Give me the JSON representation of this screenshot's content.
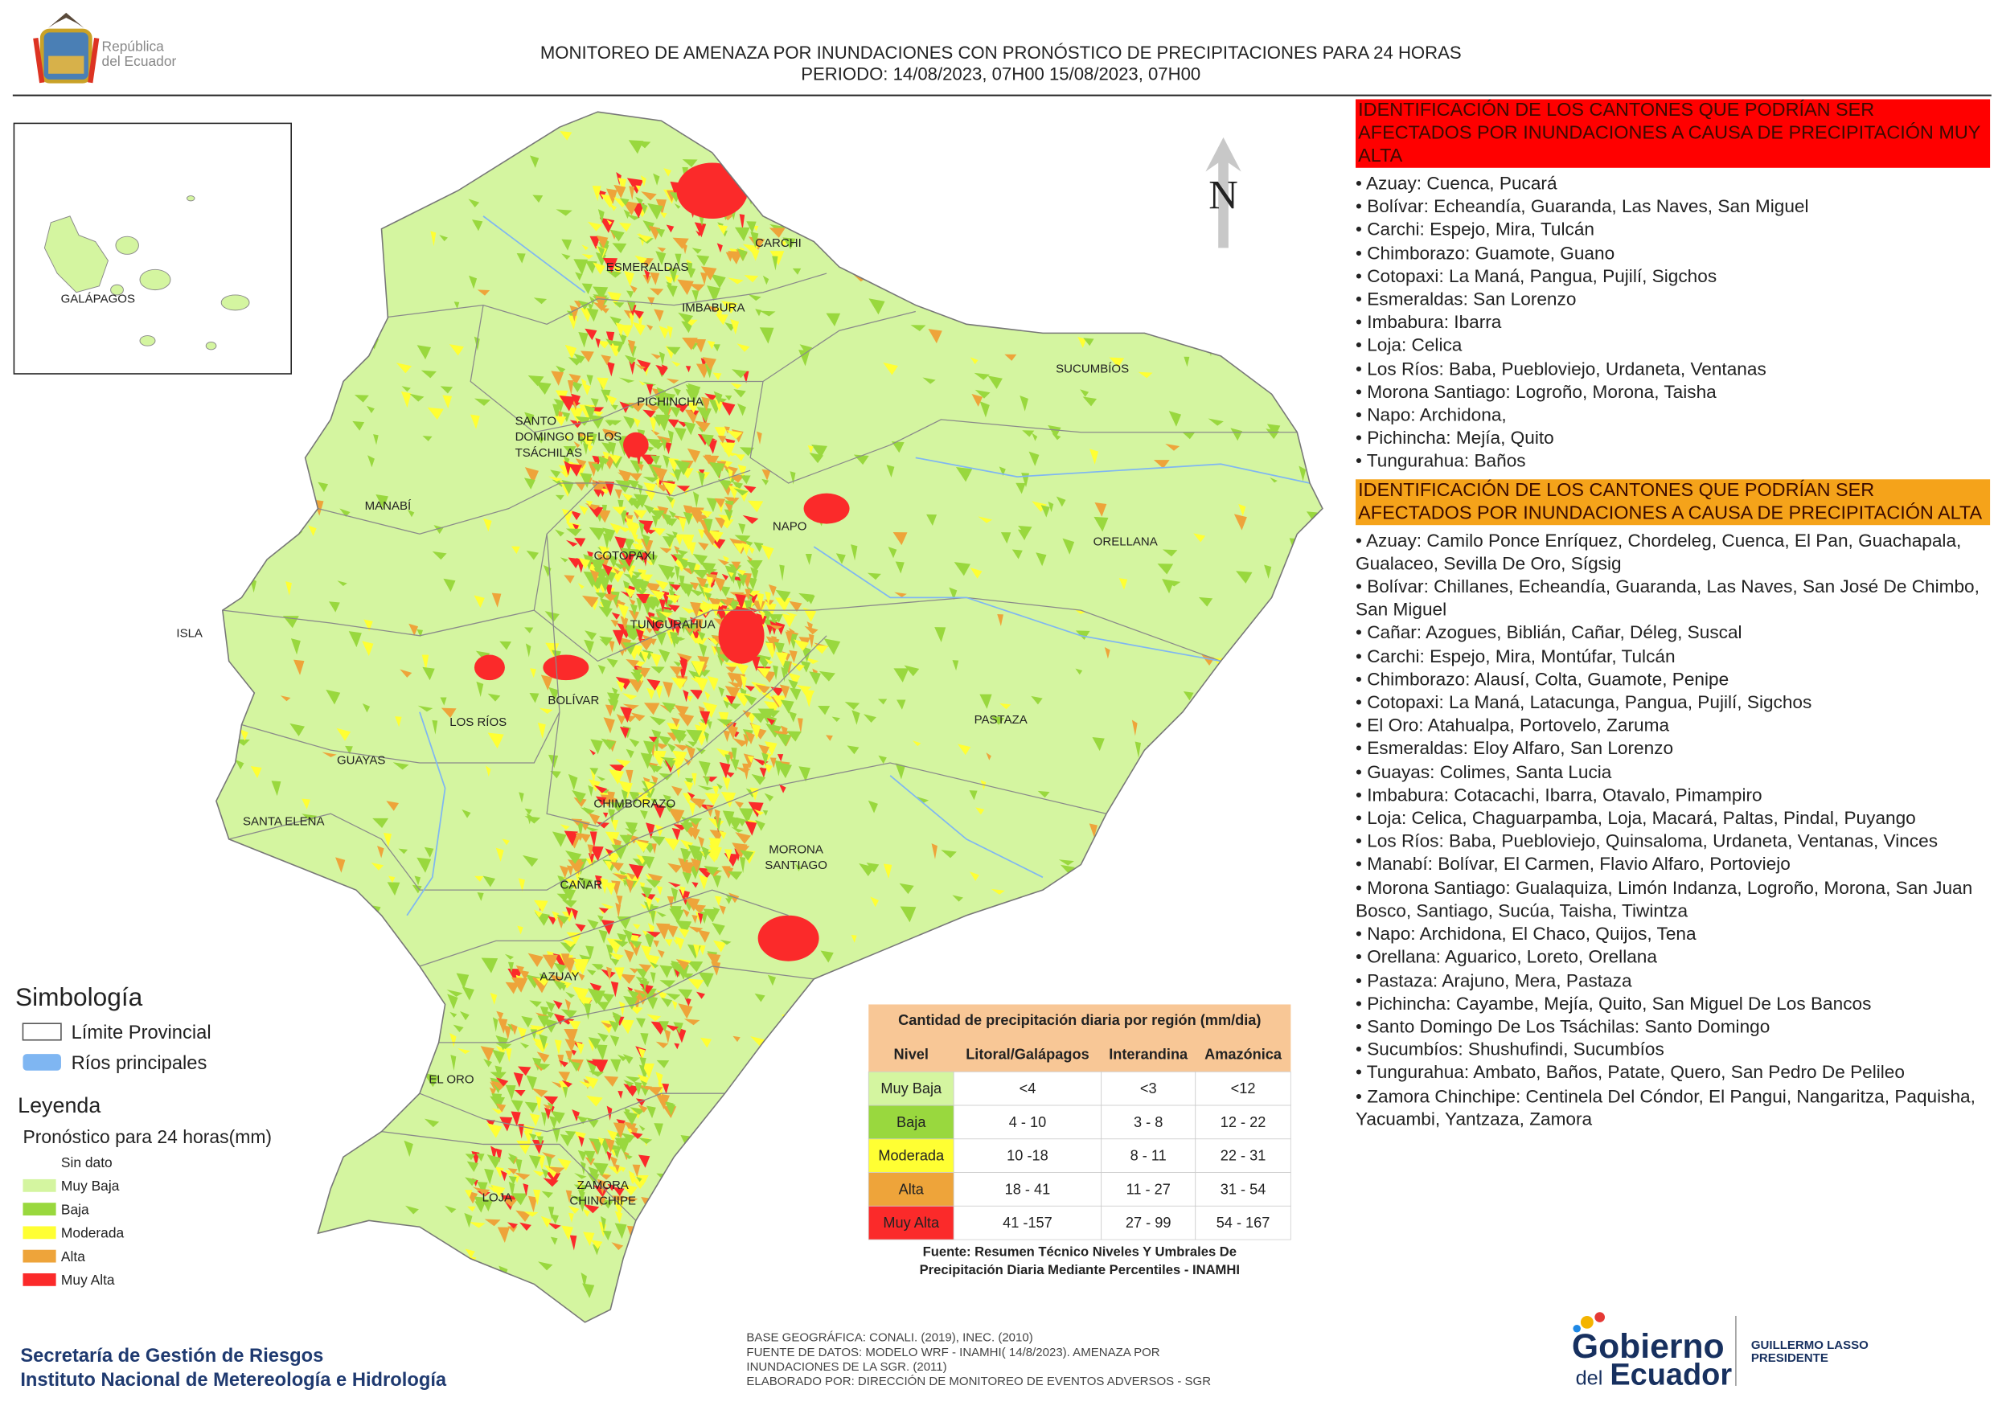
{
  "header": {
    "logo_text": [
      "República",
      "del Ecuador"
    ],
    "title": "MONITOREO DE AMENAZA POR INUNDACIONES  CON PRONÓSTICO DE  PRECIPITACIONES PARA 24 HORAS",
    "period": "PERIODO: 14/08/2023, 07H00 15/08/2023, 07H00"
  },
  "map": {
    "north": "N",
    "inset_label": "GALÁPAGOS",
    "labels": [
      {
        "lines": [
          "ESMERALDAS"
        ]
      },
      {
        "lines": [
          "CARCHI"
        ]
      },
      {
        "lines": [
          "IMBABURA"
        ]
      },
      {
        "lines": [
          "SUCUMBÍOS"
        ]
      },
      {
        "lines": [
          "PICHINCHA"
        ]
      },
      {
        "lines": [
          "SANTO",
          "DOMINGO DE LOS",
          "TSÁCHILAS"
        ]
      },
      {
        "lines": [
          "MANABÍ"
        ]
      },
      {
        "lines": [
          "NAPO"
        ]
      },
      {
        "lines": [
          "ORELLANA"
        ]
      },
      {
        "lines": [
          "COTOPAXI"
        ]
      },
      {
        "lines": [
          "TUNGURAHUA"
        ]
      },
      {
        "lines": [
          "ISLA"
        ]
      },
      {
        "lines": [
          "BOLÍVAR"
        ]
      },
      {
        "lines": [
          "LOS RÍOS"
        ]
      },
      {
        "lines": [
          "PASTAZA"
        ]
      },
      {
        "lines": [
          "GUAYAS"
        ]
      },
      {
        "lines": [
          "CHIMBORAZO"
        ]
      },
      {
        "lines": [
          "SANTA ELENA"
        ]
      },
      {
        "lines": [
          "MORONA",
          "SANTIAGO"
        ]
      },
      {
        "lines": [
          "CAÑAR"
        ]
      },
      {
        "lines": [
          "AZUAY"
        ]
      },
      {
        "lines": [
          "EL ORO"
        ]
      },
      {
        "lines": [
          "ZAMORA",
          "CHINCHIPE"
        ]
      },
      {
        "lines": [
          "LOJA"
        ]
      }
    ]
  },
  "legend": {
    "symbology_title": "Simbología",
    "symbols": [
      {
        "label": "Límite Provincial",
        "color": "#ffffff"
      },
      {
        "label": "Ríos principales",
        "color": "#7fb6f2"
      }
    ],
    "legend_title": "Leyenda",
    "subtitle": "Pronóstico para 24 horas(mm)",
    "levels": [
      {
        "label": "Sin dato",
        "color": "#ffffff"
      },
      {
        "label": "Muy Baja",
        "color": "#d4f5a0"
      },
      {
        "label": "Baja",
        "color": "#99d83e"
      },
      {
        "label": "Moderada",
        "color": "#ffff33"
      },
      {
        "label": "Alta",
        "color": "#eea43a"
      },
      {
        "label": "Muy Alta",
        "color": "#fb2a2a"
      }
    ]
  },
  "table": {
    "title": "Cantidad de precipitación diaria por región (mm/dia)",
    "headers": [
      "Nivel",
      "Litoral/Galápagos",
      "Interandina",
      "Amazónica"
    ],
    "rows": [
      [
        "Muy Baja",
        "<4",
        "<3",
        "<12"
      ],
      [
        "Baja",
        "4 - 10",
        "3 - 8",
        "12 - 22"
      ],
      [
        "Moderada",
        "10 -18",
        "8 - 11",
        "22 - 31"
      ],
      [
        "Alta",
        "18 - 41",
        "11 - 27",
        "31 - 54"
      ],
      [
        "Muy Alta",
        "41 -157",
        "27 - 99",
        "54 - 167"
      ]
    ],
    "source": [
      "Fuente: Resumen Técnico Niveles Y Umbrales De",
      "Precipitación Diaria Mediante Percentiles - INAMHI"
    ]
  },
  "lists": [
    {
      "heading": "IDENTIFICACIÓN DE LOS CANTONES QUE PODRÍAN SER AFECTADOS POR INUNDACIONES  A CAUSA DE PRECIPITACIÓN MUY ALTA",
      "color": "#ff0000",
      "items": [
        "• Azuay: Cuenca, Pucará",
        "• Bolívar: Echeandía, Guaranda, Las Naves, San Miguel",
        "• Carchi: Espejo, Mira, Tulcán",
        "• Chimborazo: Guamote, Guano",
        "• Cotopaxi: La Maná, Pangua, Pujilí, Sigchos",
        "• Esmeraldas: San Lorenzo",
        "• Imbabura: Ibarra",
        "• Loja: Celica",
        "• Los Ríos: Baba, Puebloviejo, Urdaneta, Ventanas",
        "• Morona Santiago: Logroño, Morona, Taisha",
        "• Napo: Archidona,",
        "• Pichincha: Mejía, Quito",
        "• Tungurahua: Baños"
      ]
    },
    {
      "heading": "IDENTIFICACIÓN DE LOS CANTONES QUE  PODRÍAN SER AFECTADOS POR INUNDACIONES  A CAUSA DE PRECIPITACIÓN ALTA",
      "color": "#f5a31a",
      "items": [
        "• Azuay: Camilo Ponce Enríquez, Chordeleg, Cuenca, El Pan, Guachapala, Gualaceo, Sevilla De Oro, Sígsig",
        "• Bolívar: Chillanes, Echeandía, Guaranda, Las Naves, San José De Chimbo, San Miguel",
        "• Cañar: Azogues, Biblián, Cañar, Déleg, Suscal",
        "• Carchi: Espejo, Mira, Montúfar, Tulcán",
        "• Chimborazo: Alausí, Colta, Guamote, Penipe",
        "• Cotopaxi: La Maná, Latacunga, Pangua, Pujilí, Sigchos",
        "• El Oro: Atahualpa, Portovelo, Zaruma",
        "• Esmeraldas: Eloy Alfaro, San Lorenzo",
        "• Guayas: Colimes, Santa Lucia",
        "• Imbabura: Cotacachi, Ibarra, Otavalo, Pimampiro",
        "• Loja: Celica, Chaguarpamba, Loja, Macará, Paltas, Pindal, Puyango",
        "• Los Ríos: Baba, Puebloviejo, Quinsaloma, Urdaneta, Ventanas, Vinces",
        "• Manabí: Bolívar, El Carmen, Flavio Alfaro, Portoviejo",
        "• Morona Santiago: Gualaquiza, Limón Indanza, Logroño, Morona, San Juan Bosco, Santiago, Sucúa, Taisha, Tiwintza",
        "• Napo: Archidona, El Chaco, Quijos, Tena",
        "• Orellana: Aguarico, Loreto, Orellana",
        "• Pastaza: Arajuno, Mera, Pastaza",
        "• Pichincha: Cayambe, Mejía, Quito, San Miguel De Los Bancos",
        "• Santo Domingo De Los Tsáchilas: Santo Domingo",
        "• Sucumbíos: Shushufindi, Sucumbíos",
        "• Tungurahua: Ambato, Baños, Patate, Quero, San Pedro De Pelileo",
        "• Zamora Chinchipe: Centinela Del Cóndor, El Pangui, Nangaritza, Paquisha, Yacuambi, Yantzaza, Zamora"
      ]
    }
  ],
  "footer": {
    "institutions": [
      "Secretaría de Gestión de Riesgos",
      "Instituto Nacional de Metereología e Hidrología"
    ],
    "credits": [
      "BASE GEOGRÁFICA: CONALI. (2019), INEC. (2010)",
      "FUENTE DE DATOS: MODELO WRF - INAMHI( 14/8/2023).  AMENAZA POR",
      "INUNDACIONES DE LA SGR. (2011)",
      "ELABORADO POR: DIRECCIÓN DE MONITOREO DE EVENTOS ADVERSOS - SGR"
    ],
    "gov_logo": [
      "Gobierno",
      "del",
      "Ecuador"
    ],
    "president": [
      "GUILLERMO LASSO",
      "PRESIDENTE"
    ]
  }
}
